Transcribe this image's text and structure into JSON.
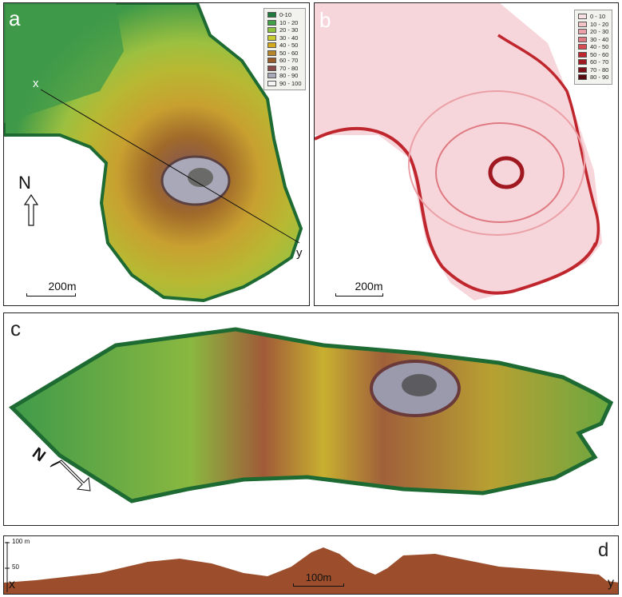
{
  "panels": {
    "a": {
      "label": "a",
      "axis_start": "x",
      "axis_end": "y",
      "north": "N",
      "scale": "200m"
    },
    "b": {
      "label": "b",
      "scale": "200m"
    },
    "c": {
      "label": "c",
      "north": "N"
    },
    "d": {
      "label": "d",
      "axis_start": "x",
      "axis_end": "y",
      "scale": "100m",
      "ticks": [
        {
          "label": "100 m",
          "value": 100
        },
        {
          "label": "50",
          "value": 50
        }
      ]
    }
  },
  "legend_a": {
    "classes": [
      {
        "label": "0-10",
        "color": "#1e7a3c"
      },
      {
        "label": "10 - 20",
        "color": "#3fa047"
      },
      {
        "label": "20 - 30",
        "color": "#8cc43f"
      },
      {
        "label": "30 - 40",
        "color": "#c8cc2f"
      },
      {
        "label": "40 - 50",
        "color": "#d4a91e"
      },
      {
        "label": "50 - 60",
        "color": "#b8862a"
      },
      {
        "label": "60 - 70",
        "color": "#9a5c2a"
      },
      {
        "label": "70 - 80",
        "color": "#8a4a4a"
      },
      {
        "label": "80 - 90",
        "color": "#a8a8b8"
      },
      {
        "label": "90 - 100",
        "color": "#f4f4f4"
      }
    ]
  },
  "legend_b": {
    "classes": [
      {
        "label": "0 - 10",
        "color": "#f8e0e2"
      },
      {
        "label": "10 - 20",
        "color": "#f2c2c6"
      },
      {
        "label": "20 - 30",
        "color": "#eaa0a6"
      },
      {
        "label": "30 - 40",
        "color": "#e07a82"
      },
      {
        "label": "40 - 50",
        "color": "#d64a52"
      },
      {
        "label": "50 - 60",
        "color": "#c0262e"
      },
      {
        "label": "60 - 70",
        "color": "#a01820"
      },
      {
        "label": "70 - 80",
        "color": "#7c1018"
      },
      {
        "label": "80 - 90",
        "color": "#560a10"
      }
    ]
  }
}
